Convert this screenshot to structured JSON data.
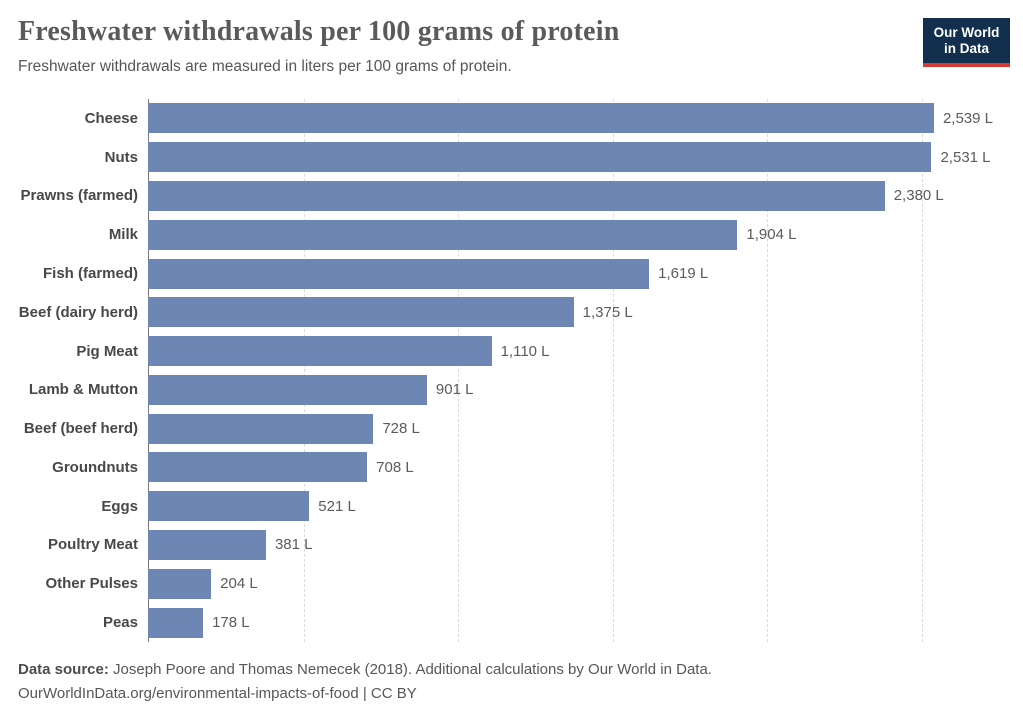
{
  "header": {
    "title": "Freshwater withdrawals per 100 grams of protein",
    "subtitle": "Freshwater withdrawals are measured in liters per 100 grams of protein.",
    "logo": {
      "line1": "Our World",
      "line2": "in Data",
      "bg_color": "#12304d",
      "accent_color": "#d93a34"
    }
  },
  "chart_data": {
    "type": "bar",
    "orientation": "horizontal",
    "title": "Freshwater withdrawals per 100 grams of protein",
    "subtitle": "Freshwater withdrawals are measured in liters per 100 grams of protein.",
    "xlabel": "",
    "ylabel": "",
    "unit": "liters per 100 grams of protein",
    "categories": [
      "Cheese",
      "Nuts",
      "Prawns (farmed)",
      "Milk",
      "Fish (farmed)",
      "Beef (dairy herd)",
      "Pig Meat",
      "Lamb & Mutton",
      "Beef (beef herd)",
      "Groundnuts",
      "Eggs",
      "Poultry Meat",
      "Other Pulses",
      "Peas"
    ],
    "values": [
      2539,
      2531,
      2380,
      1904,
      1619,
      1375,
      1110,
      901,
      728,
      708,
      521,
      381,
      204,
      178
    ],
    "value_labels": [
      "2,539 L",
      "2,531 L",
      "2,380 L",
      "1,904 L",
      "1,619 L",
      "1,375 L",
      "1,110 L",
      "901 L",
      "728 L",
      "708 L",
      "521 L",
      "381 L",
      "204 L",
      "178 L"
    ],
    "xlim": [
      0,
      2775
    ],
    "gridlines": [
      500,
      1000,
      1500,
      2000,
      2500
    ],
    "grid_style": "dashed-vertical",
    "legend": "none",
    "bar_color": "#6d86b4",
    "axis_line_color": "#787878"
  },
  "footer": {
    "datasource_label": "Data source:",
    "datasource_text": " Joseph Poore and Thomas Nemecek (2018). Additional calculations by Our World in Data.",
    "link_line": "OurWorldInData.org/environmental-impacts-of-food | CC BY"
  }
}
